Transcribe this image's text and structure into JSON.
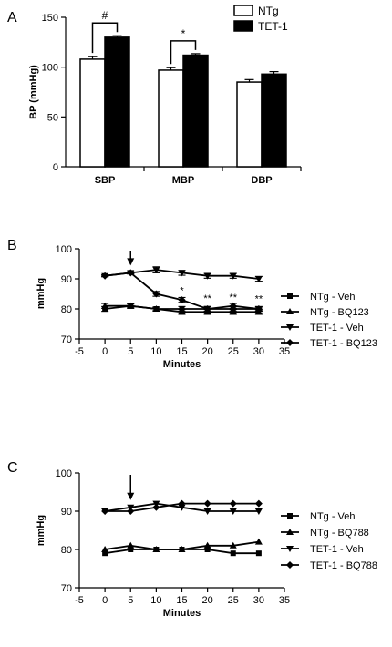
{
  "chart_data": [
    {
      "panel": "A",
      "type": "bar",
      "categories": [
        "SBP",
        "MBP",
        "DBP"
      ],
      "series": [
        {
          "name": "NTg",
          "values": [
            108,
            97,
            85
          ],
          "errors": [
            2.5,
            2.5,
            2.5
          ],
          "color": "#ffffff"
        },
        {
          "name": "TET-1",
          "values": [
            130,
            112,
            93
          ],
          "errors": [
            1.5,
            1.5,
            2.5
          ],
          "color": "#000000"
        }
      ],
      "ylabel": "BP (mmHg)",
      "ylim": [
        0,
        150
      ],
      "yticks": [
        "0",
        "50",
        "100",
        "150"
      ],
      "legend_position": "top-right",
      "significance": [
        {
          "category": "SBP",
          "label": "#",
          "style": "bracket"
        },
        {
          "category": "MBP",
          "label": "*",
          "style": "bracket"
        }
      ]
    },
    {
      "panel": "B",
      "type": "line",
      "x": [
        0,
        5,
        10,
        15,
        20,
        25,
        30
      ],
      "series": [
        {
          "name": "NTg - Veh",
          "marker": "square",
          "values": [
            80,
            81,
            80,
            80,
            80,
            80,
            80
          ],
          "errors": [
            0.8,
            0.8,
            0.6,
            0.8,
            0.8,
            0.8,
            0.6
          ]
        },
        {
          "name": "NTg - BQ123",
          "marker": "triangle-up",
          "values": [
            81,
            81,
            80,
            79,
            79,
            79,
            79
          ],
          "errors": [
            0.8,
            0.6,
            0.6,
            0.8,
            0.8,
            0.8,
            0.8
          ]
        },
        {
          "name": "TET-1 - Veh",
          "marker": "triangle-down",
          "values": [
            91,
            92,
            93,
            92,
            91,
            91,
            90
          ],
          "errors": [
            0.3,
            0.4,
            1.0,
            0.8,
            0.8,
            0.8,
            0.8
          ]
        },
        {
          "name": "TET-1 - BQ123",
          "marker": "diamond",
          "values": [
            91,
            92,
            85,
            83,
            80,
            81,
            80
          ],
          "errors": [
            0.3,
            0.3,
            0.8,
            0.8,
            0.8,
            0.8,
            0.8
          ]
        }
      ],
      "xlabel": "Minutes",
      "ylabel": "mmHg",
      "xlim": [
        -5,
        35
      ],
      "ylim": [
        70,
        100
      ],
      "xticks": [
        "-5",
        "0",
        "5",
        "10",
        "15",
        "20",
        "25",
        "30",
        "35"
      ],
      "yticks": [
        "70",
        "80",
        "90",
        "100"
      ],
      "arrow_at_x": 5,
      "annotations": [
        {
          "x": 15,
          "y": 85,
          "text": "*"
        },
        {
          "x": 20,
          "y": 82.5,
          "text": "**"
        },
        {
          "x": 25,
          "y": 82.8,
          "text": "**"
        },
        {
          "x": 30,
          "y": 82.3,
          "text": "**"
        }
      ],
      "legend_position": "right"
    },
    {
      "panel": "C",
      "type": "line",
      "x": [
        0,
        5,
        10,
        15,
        20,
        25,
        30
      ],
      "series": [
        {
          "name": "NTg - Veh",
          "marker": "square",
          "values": [
            79,
            80,
            80,
            80,
            80,
            79,
            79
          ]
        },
        {
          "name": "NTg - BQ788",
          "marker": "triangle-up",
          "values": [
            80,
            81,
            80,
            80,
            81,
            81,
            82
          ]
        },
        {
          "name": "TET-1 - Veh",
          "marker": "triangle-down",
          "values": [
            90,
            91,
            92,
            91,
            90,
            90,
            90
          ]
        },
        {
          "name": "TET-1 - BQ788",
          "marker": "diamond",
          "values": [
            90,
            90,
            91,
            92,
            92,
            92,
            92
          ]
        }
      ],
      "xlabel": "Minutes",
      "ylabel": "mmHg",
      "xlim": [
        -5,
        35
      ],
      "ylim": [
        70,
        100
      ],
      "xticks": [
        "-5",
        "0",
        "5",
        "10",
        "15",
        "20",
        "25",
        "30",
        "35"
      ],
      "yticks": [
        "70",
        "80",
        "90",
        "100"
      ],
      "arrow_at_x": 5,
      "legend_position": "right"
    }
  ]
}
